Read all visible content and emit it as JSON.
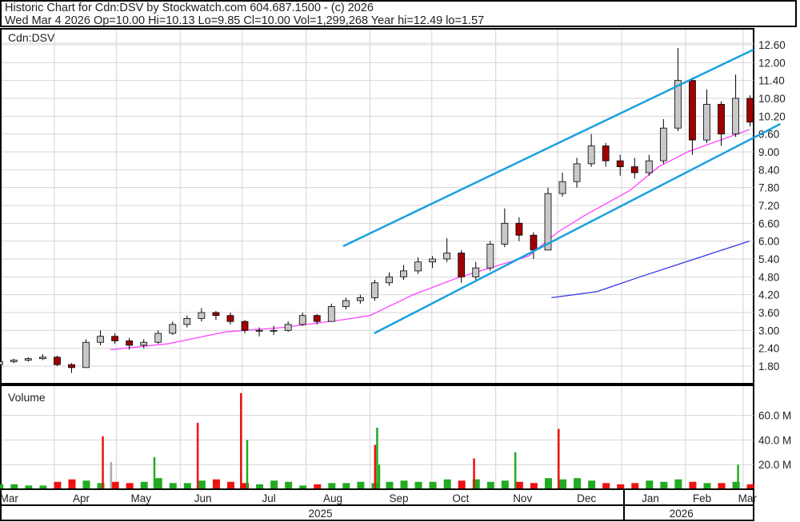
{
  "header": {
    "line1": "Historic Chart for Cdn:DSV by Stockwatch.com 604.687.1500 - (c) 2026",
    "line2": "Wed Mar  4 2026  Op=10.00  Hi=10.13  Lo=9.85  Cl=10.00  Vol=1,299,268  Year hi=12.49  lo=1.57"
  },
  "chart_data": [
    {
      "type": "candlestick",
      "title": "Cdn:DSV",
      "ylim": [
        1.5,
        12.9
      ],
      "yticks": [
        "12.60",
        "12.00",
        "11.40",
        "10.80",
        "10.20",
        "9.60",
        "9.00",
        "8.40",
        "7.80",
        "7.20",
        "6.60",
        "6.00",
        "5.40",
        "4.80",
        "4.20",
        "3.60",
        "3.00",
        "2.40",
        "1.80"
      ],
      "colors": {
        "up": "#c8c8c8",
        "down": "#a00000",
        "ma_short": "#ff44ff",
        "ma_long": "#3333ee",
        "channel": "#1aa0e0"
      },
      "ohlc": [
        [
          "2025-03-03",
          1.85,
          2.0,
          1.8,
          1.95
        ],
        [
          "2025-03-10",
          1.95,
          2.05,
          1.9,
          2.0
        ],
        [
          "2025-03-17",
          2.0,
          2.1,
          1.95,
          2.05
        ],
        [
          "2025-03-24",
          2.05,
          2.2,
          2.0,
          2.1
        ],
        [
          "2025-03-31",
          2.1,
          2.15,
          1.8,
          1.85
        ],
        [
          "2025-04-07",
          1.85,
          1.9,
          1.57,
          1.75
        ],
        [
          "2025-04-14",
          1.75,
          2.7,
          1.75,
          2.6
        ],
        [
          "2025-04-21",
          2.6,
          3.0,
          2.5,
          2.8
        ],
        [
          "2025-04-28",
          2.8,
          2.9,
          2.55,
          2.65
        ],
        [
          "2025-05-05",
          2.65,
          2.75,
          2.35,
          2.5
        ],
        [
          "2025-05-12",
          2.5,
          2.7,
          2.4,
          2.6
        ],
        [
          "2025-05-19",
          2.6,
          3.0,
          2.55,
          2.9
        ],
        [
          "2025-05-26",
          2.9,
          3.3,
          2.85,
          3.2
        ],
        [
          "2025-06-02",
          3.2,
          3.5,
          3.1,
          3.4
        ],
        [
          "2025-06-09",
          3.4,
          3.75,
          3.3,
          3.6
        ],
        [
          "2025-06-16",
          3.6,
          3.65,
          3.35,
          3.5
        ],
        [
          "2025-06-23",
          3.5,
          3.6,
          3.2,
          3.3
        ],
        [
          "2025-06-30",
          3.3,
          3.35,
          2.9,
          3.0
        ],
        [
          "2025-07-07",
          3.0,
          3.1,
          2.8,
          3.0
        ],
        [
          "2025-07-14",
          3.0,
          3.15,
          2.85,
          3.0
        ],
        [
          "2025-07-21",
          3.0,
          3.3,
          2.95,
          3.2
        ],
        [
          "2025-07-28",
          3.2,
          3.6,
          3.15,
          3.5
        ],
        [
          "2025-08-04",
          3.5,
          3.55,
          3.2,
          3.3
        ],
        [
          "2025-08-11",
          3.3,
          3.9,
          3.3,
          3.8
        ],
        [
          "2025-08-18",
          3.8,
          4.1,
          3.7,
          4.0
        ],
        [
          "2025-08-25",
          4.0,
          4.2,
          3.9,
          4.1
        ],
        [
          "2025-09-01",
          4.1,
          4.7,
          4.0,
          4.6
        ],
        [
          "2025-09-08",
          4.6,
          4.95,
          4.5,
          4.8
        ],
        [
          "2025-09-15",
          4.8,
          5.2,
          4.7,
          5.0
        ],
        [
          "2025-09-22",
          5.0,
          5.45,
          4.9,
          5.3
        ],
        [
          "2025-09-29",
          5.3,
          5.5,
          5.1,
          5.4
        ],
        [
          "2025-10-06",
          5.4,
          6.1,
          5.3,
          5.6
        ],
        [
          "2025-10-13",
          5.6,
          5.7,
          4.6,
          4.8
        ],
        [
          "2025-10-20",
          4.8,
          5.3,
          4.7,
          5.1
        ],
        [
          "2025-10-27",
          5.1,
          6.0,
          5.0,
          5.9
        ],
        [
          "2025-11-03",
          5.9,
          7.1,
          5.8,
          6.6
        ],
        [
          "2025-11-10",
          6.6,
          6.8,
          6.0,
          6.2
        ],
        [
          "2025-11-17",
          6.2,
          6.3,
          5.4,
          5.7
        ],
        [
          "2025-11-24",
          5.7,
          7.8,
          5.7,
          7.6
        ],
        [
          "2025-12-01",
          7.6,
          8.3,
          7.5,
          8.0
        ],
        [
          "2025-12-08",
          8.0,
          8.8,
          7.8,
          8.6
        ],
        [
          "2025-12-15",
          8.6,
          9.6,
          8.5,
          9.2
        ],
        [
          "2025-12-22",
          9.2,
          9.3,
          8.5,
          8.7
        ],
        [
          "2025-12-29",
          8.7,
          8.9,
          8.2,
          8.5
        ],
        [
          "2026-01-05",
          8.5,
          8.8,
          8.1,
          8.3
        ],
        [
          "2026-01-12",
          8.3,
          8.9,
          8.2,
          8.7
        ],
        [
          "2026-01-19",
          8.7,
          10.1,
          8.6,
          9.8
        ],
        [
          "2026-01-26",
          9.8,
          12.49,
          9.7,
          11.4
        ],
        [
          "2026-02-02",
          11.4,
          11.5,
          8.9,
          9.4
        ],
        [
          "2026-02-09",
          9.4,
          11.1,
          9.3,
          10.6
        ],
        [
          "2026-02-16",
          10.6,
          10.7,
          9.2,
          9.6
        ],
        [
          "2026-02-23",
          9.6,
          11.6,
          9.5,
          10.8
        ],
        [
          "2026-03-02",
          10.8,
          10.9,
          9.85,
          10.0
        ]
      ],
      "ma_short": [
        [
          "2025-04-28",
          2.35
        ],
        [
          "2025-05-26",
          2.55
        ],
        [
          "2025-06-23",
          2.95
        ],
        [
          "2025-07-21",
          3.1
        ],
        [
          "2025-08-18",
          3.35
        ],
        [
          "2025-09-01",
          3.5
        ],
        [
          "2025-09-22",
          4.2
        ],
        [
          "2025-10-13",
          4.75
        ],
        [
          "2025-11-03",
          5.2
        ],
        [
          "2025-11-17",
          5.5
        ],
        [
          "2025-12-01",
          6.3
        ],
        [
          "2025-12-15",
          6.9
        ],
        [
          "2026-01-05",
          7.7
        ],
        [
          "2026-01-19",
          8.5
        ],
        [
          "2026-02-02",
          9.0
        ],
        [
          "2026-02-16",
          9.35
        ],
        [
          "2026-03-04",
          9.75
        ]
      ],
      "ma_long": [
        [
          "2025-11-28",
          4.1
        ],
        [
          "2025-12-20",
          4.3
        ],
        [
          "2026-01-10",
          4.8
        ],
        [
          "2026-02-01",
          5.3
        ],
        [
          "2026-03-04",
          6.0
        ]
      ],
      "channel": [
        [
          [
            "2025-08-19",
            5.83
          ],
          [
            "2026-03-06",
            12.44
          ]
        ],
        [
          [
            "2025-09-03",
            2.9
          ],
          [
            "2026-03-19",
            9.94
          ]
        ]
      ]
    },
    {
      "type": "bar",
      "title": "Volume",
      "yticks": [
        "60.0 M",
        "40.0 M",
        "20.0 M"
      ],
      "ylim": [
        0,
        80
      ],
      "colors": {
        "up": "#22aa22",
        "down": "#ee1111",
        "flat": "#aaaaaa"
      },
      "weekly": [
        4,
        4,
        3,
        3,
        6,
        8,
        7,
        5,
        6,
        5,
        6,
        9,
        5,
        5,
        7,
        8,
        6,
        5,
        4,
        7,
        6,
        3,
        4,
        5,
        5,
        6,
        5,
        6,
        7,
        6,
        6,
        8,
        7,
        8,
        6,
        7,
        6,
        5,
        9,
        8,
        9,
        7,
        5,
        4,
        5,
        7,
        6,
        8,
        6,
        5,
        5,
        6,
        4
      ],
      "spikes": [
        [
          "2025-04-24",
          43,
          "down"
        ],
        [
          "2025-04-28",
          22,
          "flat"
        ],
        [
          "2025-05-19",
          26,
          "up"
        ],
        [
          "2025-06-09",
          54,
          "down"
        ],
        [
          "2025-06-30",
          78,
          "down"
        ],
        [
          "2025-07-03",
          40,
          "up"
        ],
        [
          "2025-09-03",
          36,
          "down"
        ],
        [
          "2025-09-04",
          50,
          "up"
        ],
        [
          "2025-09-05",
          20,
          "up"
        ],
        [
          "2025-10-21",
          25,
          "down"
        ],
        [
          "2025-11-10",
          30,
          "up"
        ],
        [
          "2025-12-01",
          49,
          "down"
        ],
        [
          "2026-02-26",
          20,
          "up"
        ]
      ]
    }
  ],
  "xaxis": {
    "months": [
      [
        "2025-03-10",
        "Mar"
      ],
      [
        "2025-04-14",
        "Apr"
      ],
      [
        "2025-05-13",
        "May"
      ],
      [
        "2025-06-12",
        "Jun"
      ],
      [
        "2025-07-14",
        "Jul"
      ],
      [
        "2025-08-14",
        "Aug"
      ],
      [
        "2025-09-15",
        "Sep"
      ],
      [
        "2025-10-15",
        "Oct"
      ],
      [
        "2025-11-14",
        "Nov"
      ],
      [
        "2025-12-15",
        "Dec"
      ],
      [
        "2026-01-15",
        "Jan"
      ],
      [
        "2026-02-09",
        "Feb"
      ],
      [
        "2026-03-03",
        "Mar"
      ]
    ],
    "years": [
      [
        "2025-08-08",
        "2025"
      ],
      [
        "2026-01-30",
        "2026"
      ]
    ]
  }
}
